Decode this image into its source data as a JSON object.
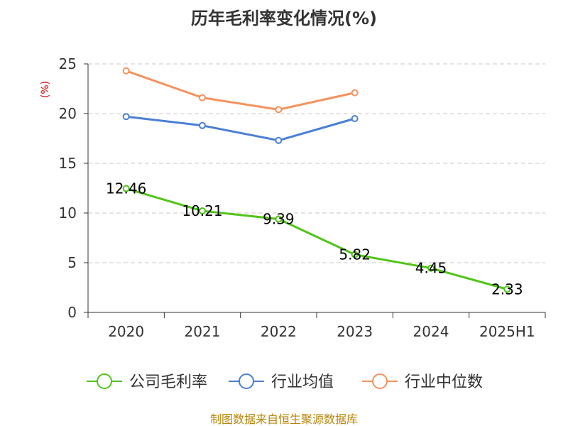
{
  "title": "历年毛利率变化情况(%)",
  "source_text": "制图数据来自恒生聚源数据库",
  "chart_data": {
    "type": "line",
    "title": "历年毛利率变化情况(%)",
    "ylabel": "(%)",
    "ylim": [
      0,
      25
    ],
    "yticks": [
      0,
      5,
      10,
      15,
      20,
      25
    ],
    "grid": true,
    "legend_position": "bottom",
    "categories": [
      "2020",
      "2021",
      "2022",
      "2023",
      "2024",
      "2025H1"
    ],
    "series": [
      {
        "name": "公司毛利率",
        "color": "#52c41a",
        "values": [
          12.46,
          10.21,
          9.39,
          5.82,
          4.45,
          2.33
        ],
        "labels": [
          "12.46",
          "10.21",
          "9.39",
          "5.82",
          "4.45",
          "2.33"
        ]
      },
      {
        "name": "行业均值",
        "color": "#4a7fd4",
        "values": [
          19.7,
          18.8,
          17.3,
          19.5,
          null,
          null
        ]
      },
      {
        "name": "行业中位数",
        "color": "#f5925e",
        "values": [
          24.3,
          21.6,
          20.4,
          22.1,
          null,
          null
        ]
      }
    ]
  }
}
